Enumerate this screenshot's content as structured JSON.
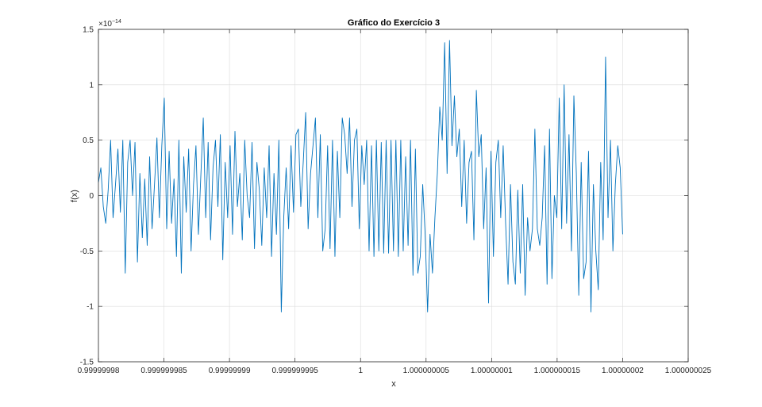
{
  "chart_data": {
    "type": "line",
    "title": "Gráfico do Exercício 3",
    "xlabel": "x",
    "ylabel": "f(x)",
    "y_exponent_label": "×10",
    "y_exponent_power": "−14",
    "xlim": [
      0.99999998,
      1.000000025
    ],
    "ylim": [
      -1.5,
      1.5
    ],
    "grid": true,
    "line_color": "#0072BD",
    "x_ticks": [
      0.99999998,
      0.999999985,
      0.99999999,
      0.999999995,
      1,
      1.000000005,
      1.00000001,
      1.000000015,
      1.00000002,
      1.000000025
    ],
    "x_tick_labels": [
      "0.99999998",
      "0.999999985",
      "0.99999999",
      "0.999999995",
      "1",
      "1.000000005",
      "1.00000001",
      "1.000000015",
      "1.00000002",
      "1.000000025"
    ],
    "y_ticks": [
      -1.5,
      -1,
      -0.5,
      0,
      0.5,
      1,
      1.5
    ],
    "y_tick_labels": [
      "-1.5",
      "-1",
      "-0.5",
      "0",
      "0.5",
      "1",
      "1.5"
    ],
    "series": [
      {
        "x_start": 0.99999998,
        "x_end": 1.00000002,
        "y": [
          0.12,
          0.25,
          -0.1,
          -0.25,
          0.05,
          0.5,
          -0.2,
          0.1,
          0.42,
          -0.15,
          0.5,
          -0.7,
          0.3,
          0.5,
          0.0,
          0.48,
          -0.6,
          0.2,
          -0.38,
          0.15,
          -0.45,
          0.35,
          -0.3,
          0.1,
          0.52,
          -0.2,
          0.45,
          0.88,
          -0.3,
          0.4,
          -0.25,
          0.15,
          -0.55,
          0.5,
          -0.7,
          0.35,
          -0.15,
          0.42,
          -0.5,
          0.1,
          0.45,
          -0.35,
          0.18,
          0.7,
          -0.2,
          0.48,
          -0.4,
          0.25,
          0.5,
          -0.1,
          0.55,
          -0.58,
          0.3,
          -0.2,
          0.45,
          -0.35,
          0.58,
          -0.1,
          0.2,
          -0.4,
          0.5,
          0.0,
          -0.2,
          0.48,
          -0.48,
          0.3,
          0.05,
          -0.45,
          0.25,
          -0.2,
          0.45,
          -0.55,
          0.2,
          -0.35,
          0.5,
          -1.05,
          -0.2,
          0.25,
          -0.3,
          0.45,
          -0.15,
          0.55,
          0.6,
          -0.1,
          0.3,
          0.75,
          -0.3,
          0.2,
          0.45,
          0.7,
          -0.2,
          0.55,
          -0.5,
          -0.3,
          0.45,
          -0.48,
          0.5,
          -0.55,
          0.4,
          -0.2,
          0.7,
          0.55,
          0.2,
          0.7,
          -0.1,
          0.5,
          0.6,
          -0.3,
          0.45,
          0.1,
          0.5,
          -0.5,
          0.45,
          -0.55,
          0.5,
          -0.5,
          0.48,
          -0.52,
          0.5,
          -0.52,
          0.5,
          -0.5,
          0.5,
          -0.55,
          0.5,
          -0.5,
          0.35,
          -0.45,
          0.5,
          -0.72,
          0.42,
          -0.7,
          -0.55,
          0.1,
          -0.35,
          -1.05,
          -0.35,
          -0.7,
          -0.2,
          0.2,
          0.8,
          0.5,
          1.38,
          0.2,
          1.4,
          0.45,
          0.9,
          0.35,
          0.6,
          -0.1,
          0.5,
          -0.25,
          0.3,
          0.4,
          -0.4,
          0.95,
          0.35,
          0.55,
          -0.3,
          0.25,
          -0.97,
          0.4,
          -0.55,
          0.3,
          0.5,
          -0.2,
          0.45,
          -0.25,
          -0.8,
          0.1,
          -0.6,
          -0.8,
          0.05,
          -0.7,
          0.1,
          -0.9,
          -0.2,
          -0.5,
          -0.3,
          0.6,
          -0.3,
          -0.45,
          -0.2,
          0.45,
          -0.8,
          0.6,
          -0.75,
          0.0,
          -0.2,
          0.88,
          -0.3,
          1.0,
          -0.25,
          0.55,
          -0.5,
          0.9,
          0.2,
          -0.9,
          0.3,
          -0.75,
          -0.6,
          0.4,
          -1.05,
          0.1,
          -0.5,
          -0.85,
          0.3,
          -0.4,
          1.25,
          -0.2,
          0.5,
          -0.5,
          0.1,
          0.45,
          0.25,
          -0.35
        ]
      }
    ]
  }
}
